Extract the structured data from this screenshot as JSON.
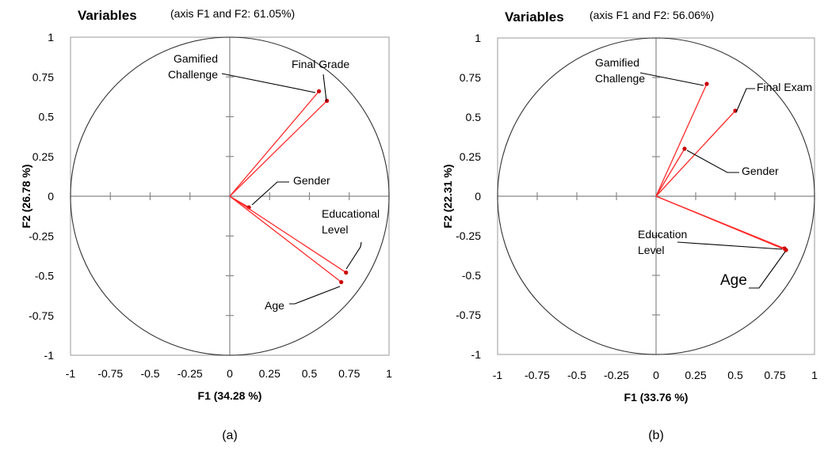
{
  "colors": {
    "vector": "#ff2a2a",
    "point": "#cc0000",
    "circle": "#333333",
    "axis": "#888888"
  },
  "chart_data": [
    {
      "type": "scatter",
      "panel_label": "(a)",
      "title": "Variables",
      "subtitle": "(axis F1 and F2: 61.05%)",
      "xlabel": "F1 (34.28 %)",
      "ylabel": "F2 (26.78 %)",
      "xlim": [
        -1,
        1
      ],
      "ylim": [
        -1,
        1
      ],
      "xticks": [
        "-1",
        "-0.75",
        "-0.5",
        "-0.25",
        "0",
        "0.25",
        "0.5",
        "0.75",
        "1"
      ],
      "yticks": [
        "1",
        "0.75",
        "0.5",
        "0.25",
        "0",
        "-0.25",
        "-0.5",
        "-0.75",
        "-1"
      ],
      "unit_circle": true,
      "points": [
        {
          "name": "Gamified\nChallenge",
          "x": 0.56,
          "y": 0.66
        },
        {
          "name": "Final Grade",
          "x": 0.61,
          "y": 0.6
        },
        {
          "name": "Gender",
          "x": 0.12,
          "y": -0.07
        },
        {
          "name": "Educational\nLevel",
          "x": 0.73,
          "y": -0.48
        },
        {
          "name": "Age",
          "x": 0.7,
          "y": -0.54
        }
      ]
    },
    {
      "type": "scatter",
      "panel_label": "(b)",
      "title": "Variables",
      "subtitle": "(axis F1 and F2: 56.06%)",
      "xlabel": "F1 (33.76 %)",
      "ylabel": "F2 (22.31 %)",
      "xlim": [
        -1,
        1
      ],
      "ylim": [
        -1,
        1
      ],
      "xticks": [
        "-1",
        "-0.75",
        "-0.5",
        "-0.25",
        "0",
        "0.25",
        "0.5",
        "0.75",
        "1"
      ],
      "yticks": [
        "1",
        "0.75",
        "0.5",
        "0.25",
        "0",
        "-0.25",
        "-0.5",
        "-0.75",
        "-1"
      ],
      "unit_circle": true,
      "points": [
        {
          "name": "Gamified\nChallenge",
          "x": 0.32,
          "y": 0.71
        },
        {
          "name": "Final Exam",
          "x": 0.5,
          "y": 0.54
        },
        {
          "name": "Gender",
          "x": 0.18,
          "y": 0.3
        },
        {
          "name": "Education\nLevel",
          "x": 0.81,
          "y": -0.33
        },
        {
          "name": "Age",
          "x": 0.82,
          "y": -0.34
        }
      ]
    }
  ]
}
